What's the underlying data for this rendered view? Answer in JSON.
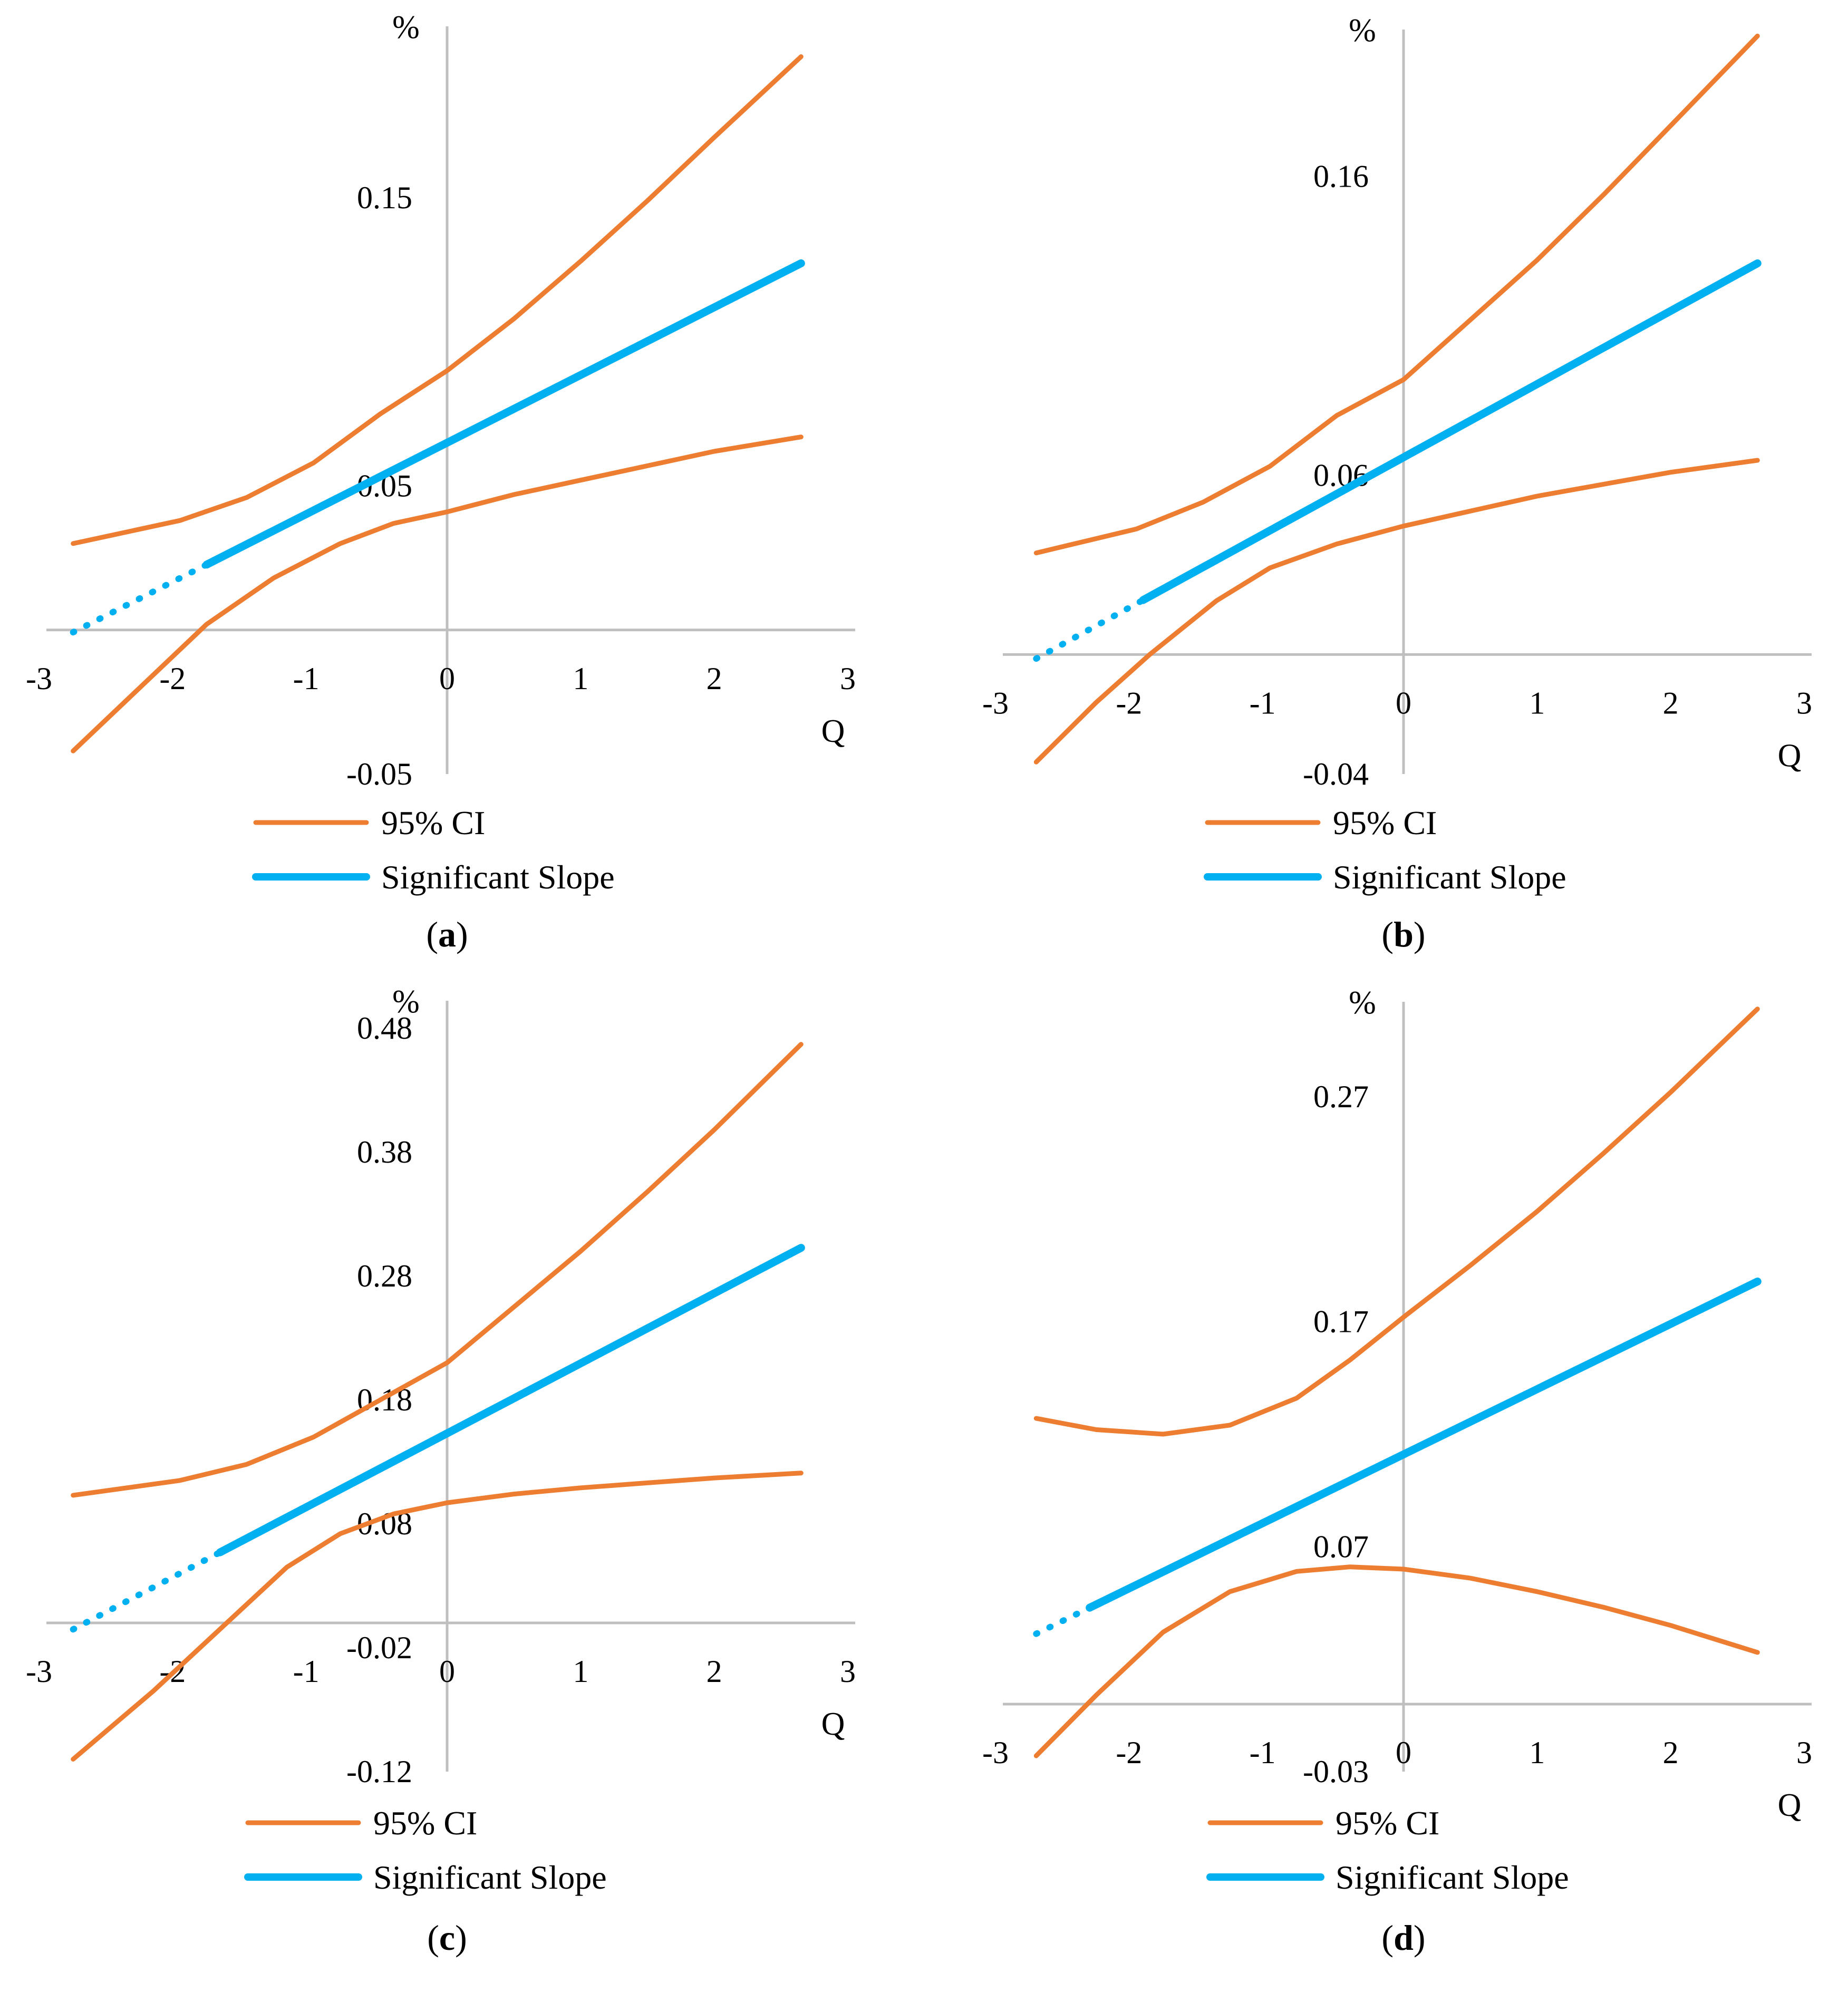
{
  "colors": {
    "ci": "#ED7D31",
    "slope": "#00B0F0",
    "axis": "#BFBFBF"
  },
  "chart_data": [
    {
      "type": "line",
      "caption": "a",
      "xlabel": "Q",
      "ylabel": "%",
      "xlim": [
        -3,
        3
      ],
      "ylim": [
        -0.05,
        0.2
      ],
      "x_ticks": [
        "-3",
        "-2",
        "-1",
        "0",
        "1",
        "2",
        "3"
      ],
      "y_ticks": [
        {
          "value": 0.15,
          "label": "0.15"
        },
        {
          "value": 0.05,
          "label": "0.05"
        },
        {
          "value": -0.05,
          "label": "-0.05"
        }
      ],
      "x_range": [
        -2.8,
        2.65
      ],
      "slope_line": {
        "intercept": 0.065,
        "slope": 0.0235,
        "significant_from": -1.8
      },
      "ci_upper": [
        [
          -2.8,
          0.03
        ],
        [
          -2.0,
          0.038
        ],
        [
          -1.5,
          0.046
        ],
        [
          -1.0,
          0.058
        ],
        [
          -0.5,
          0.075
        ],
        [
          0.0,
          0.09
        ],
        [
          0.5,
          0.108
        ],
        [
          1.0,
          0.128
        ],
        [
          1.5,
          0.149
        ],
        [
          2.0,
          0.171
        ],
        [
          2.65,
          0.199
        ]
      ],
      "ci_lower": [
        [
          -2.8,
          -0.042
        ],
        [
          -2.3,
          -0.02
        ],
        [
          -1.8,
          0.002
        ],
        [
          -1.3,
          0.018
        ],
        [
          -0.8,
          0.03
        ],
        [
          -0.4,
          0.037
        ],
        [
          0.0,
          0.041
        ],
        [
          0.5,
          0.047
        ],
        [
          1.0,
          0.052
        ],
        [
          1.5,
          0.057
        ],
        [
          2.0,
          0.062
        ],
        [
          2.65,
          0.067
        ]
      ],
      "legend": [
        "95% CI",
        "Significant Slope"
      ]
    },
    {
      "type": "line",
      "caption": "b",
      "xlabel": "Q",
      "ylabel": "%",
      "xlim": [
        -3,
        3
      ],
      "ylim": [
        -0.04,
        0.2
      ],
      "x_ticks": [
        "-3",
        "-2",
        "-1",
        "0",
        "1",
        "2",
        "3"
      ],
      "y_ticks": [
        {
          "value": 0.16,
          "label": "0.16"
        },
        {
          "value": 0.06,
          "label": "0.06"
        },
        {
          "value": -0.04,
          "label": "-0.04"
        }
      ],
      "x_range": [
        -2.75,
        2.65
      ],
      "slope_line": {
        "intercept": 0.066,
        "slope": 0.0245,
        "significant_from": -1.95
      },
      "ci_upper": [
        [
          -2.75,
          0.034
        ],
        [
          -2.0,
          0.042
        ],
        [
          -1.5,
          0.051
        ],
        [
          -1.0,
          0.063
        ],
        [
          -0.5,
          0.08
        ],
        [
          0.0,
          0.092
        ],
        [
          0.5,
          0.112
        ],
        [
          1.0,
          0.132
        ],
        [
          1.5,
          0.154
        ],
        [
          2.0,
          0.177
        ],
        [
          2.65,
          0.207
        ]
      ],
      "ci_lower": [
        [
          -2.75,
          -0.036
        ],
        [
          -2.3,
          -0.016
        ],
        [
          -1.9,
          0.0
        ],
        [
          -1.4,
          0.018
        ],
        [
          -1.0,
          0.029
        ],
        [
          -0.5,
          0.037
        ],
        [
          0.0,
          0.043
        ],
        [
          0.5,
          0.048
        ],
        [
          1.0,
          0.053
        ],
        [
          1.5,
          0.057
        ],
        [
          2.0,
          0.061
        ],
        [
          2.65,
          0.065
        ]
      ],
      "legend": [
        "95% CI",
        "Significant Slope"
      ]
    },
    {
      "type": "line",
      "caption": "c",
      "xlabel": "Q",
      "ylabel": "%",
      "xlim": [
        -3,
        3
      ],
      "ylim": [
        -0.12,
        0.48
      ],
      "x_ticks": [
        "-3",
        "-2",
        "-1",
        "0",
        "1",
        "2",
        "3"
      ],
      "y_ticks": [
        {
          "value": 0.48,
          "label": "0.48"
        },
        {
          "value": 0.38,
          "label": "0.38"
        },
        {
          "value": 0.28,
          "label": "0.28"
        },
        {
          "value": 0.18,
          "label": "0.18"
        },
        {
          "value": 0.08,
          "label": "0.08"
        },
        {
          "value": -0.02,
          "label": "-0.02"
        },
        {
          "value": -0.12,
          "label": "-0.12"
        }
      ],
      "x_range": [
        -2.8,
        2.65
      ],
      "slope_line": {
        "intercept": 0.153,
        "slope": 0.0565,
        "significant_from": -1.7
      },
      "ci_upper": [
        [
          -2.8,
          0.103
        ],
        [
          -2.0,
          0.115
        ],
        [
          -1.5,
          0.128
        ],
        [
          -1.0,
          0.15
        ],
        [
          -0.5,
          0.18
        ],
        [
          0.0,
          0.21
        ],
        [
          0.5,
          0.255
        ],
        [
          1.0,
          0.3
        ],
        [
          1.5,
          0.348
        ],
        [
          2.0,
          0.398
        ],
        [
          2.65,
          0.467
        ]
      ],
      "ci_lower": [
        [
          -2.8,
          -0.11
        ],
        [
          -2.2,
          -0.055
        ],
        [
          -1.7,
          -0.005
        ],
        [
          -1.2,
          0.045
        ],
        [
          -0.8,
          0.072
        ],
        [
          -0.4,
          0.088
        ],
        [
          0.0,
          0.097
        ],
        [
          0.5,
          0.104
        ],
        [
          1.0,
          0.109
        ],
        [
          1.5,
          0.113
        ],
        [
          2.0,
          0.117
        ],
        [
          2.65,
          0.121
        ]
      ],
      "legend": [
        "95% CI",
        "Significant Slope"
      ]
    },
    {
      "type": "line",
      "caption": "d",
      "xlabel": "Q",
      "ylabel": "%",
      "xlim": [
        -3,
        3
      ],
      "ylim": [
        -0.03,
        0.3
      ],
      "x_ticks": [
        "-3",
        "-2",
        "-1",
        "0",
        "1",
        "2",
        "3"
      ],
      "y_ticks": [
        {
          "value": 0.27,
          "label": "0.27"
        },
        {
          "value": 0.17,
          "label": "0.17"
        },
        {
          "value": 0.07,
          "label": "0.07"
        },
        {
          "value": -0.03,
          "label": "-0.03"
        }
      ],
      "x_range": [
        -2.75,
        2.65
      ],
      "slope_line": {
        "intercept": 0.111,
        "slope": 0.029,
        "significant_from": -2.35
      },
      "ci_upper": [
        [
          -2.75,
          0.127
        ],
        [
          -2.3,
          0.122
        ],
        [
          -1.8,
          0.12
        ],
        [
          -1.3,
          0.124
        ],
        [
          -0.8,
          0.136
        ],
        [
          -0.4,
          0.153
        ],
        [
          0.0,
          0.172
        ],
        [
          0.5,
          0.195
        ],
        [
          1.0,
          0.219
        ],
        [
          1.5,
          0.245
        ],
        [
          2.0,
          0.272
        ],
        [
          2.65,
          0.309
        ]
      ],
      "ci_lower": [
        [
          -2.75,
          -0.023
        ],
        [
          -2.3,
          0.004
        ],
        [
          -1.8,
          0.032
        ],
        [
          -1.3,
          0.05
        ],
        [
          -0.8,
          0.059
        ],
        [
          -0.4,
          0.061
        ],
        [
          0.0,
          0.06
        ],
        [
          0.5,
          0.056
        ],
        [
          1.0,
          0.05
        ],
        [
          1.5,
          0.043
        ],
        [
          2.0,
          0.035
        ],
        [
          2.65,
          0.023
        ]
      ],
      "legend": [
        "95% CI",
        "Significant Slope"
      ]
    }
  ]
}
